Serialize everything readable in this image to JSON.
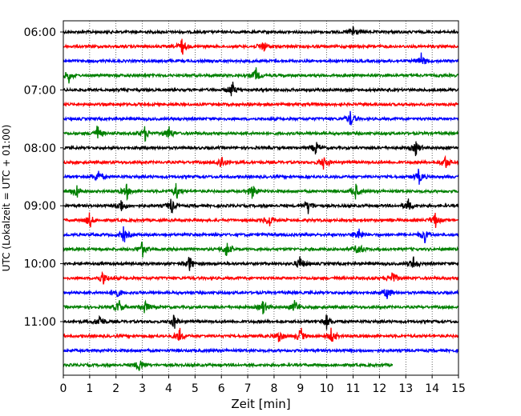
{
  "chart_data": {
    "type": "line",
    "title": "",
    "xlabel": "Zeit  [min]",
    "ylabel": "UTC (Lokalzeit = UTC + 01:00)",
    "xlim": [
      0,
      15
    ],
    "x_ticks": [
      "0",
      "1",
      "2",
      "3",
      "4",
      "5",
      "6",
      "7",
      "8",
      "9",
      "10",
      "11",
      "12",
      "13",
      "14",
      "15"
    ],
    "y_ticks": [
      "06:00",
      "07:00",
      "08:00",
      "09:00",
      "10:00",
      "11:00"
    ],
    "grid": "vertical dotted",
    "series_colors": [
      "#000000",
      "#ff0000",
      "#0000ff",
      "#008000"
    ],
    "traces": [
      {
        "start_utc": "06:00",
        "end_min": 15,
        "color": "#000000",
        "events_min": [
          11.0
        ]
      },
      {
        "start_utc": "06:15",
        "end_min": 15,
        "color": "#ff0000",
        "events_min": [
          4.5,
          7.6
        ]
      },
      {
        "start_utc": "06:30",
        "end_min": 15,
        "color": "#0000ff",
        "events_min": [
          13.6
        ]
      },
      {
        "start_utc": "06:45",
        "end_min": 15,
        "color": "#008000",
        "events_min": [
          0.2,
          7.3
        ]
      },
      {
        "start_utc": "07:00",
        "end_min": 15,
        "color": "#000000",
        "events_min": [
          6.4
        ]
      },
      {
        "start_utc": "07:15",
        "end_min": 15,
        "color": "#ff0000",
        "events_min": []
      },
      {
        "start_utc": "07:30",
        "end_min": 15,
        "color": "#0000ff",
        "events_min": [
          10.9
        ]
      },
      {
        "start_utc": "07:45",
        "end_min": 15,
        "color": "#008000",
        "events_min": [
          1.3,
          3.1,
          4.0
        ]
      },
      {
        "start_utc": "08:00",
        "end_min": 15,
        "color": "#000000",
        "events_min": [
          9.6,
          13.4
        ]
      },
      {
        "start_utc": "08:15",
        "end_min": 15,
        "color": "#ff0000",
        "events_min": [
          6.0,
          9.9,
          14.5
        ]
      },
      {
        "start_utc": "08:30",
        "end_min": 15,
        "color": "#0000ff",
        "events_min": [
          1.3,
          13.5
        ]
      },
      {
        "start_utc": "08:45",
        "end_min": 15,
        "color": "#008000",
        "events_min": [
          0.5,
          2.4,
          4.3,
          7.2,
          11.1
        ]
      },
      {
        "start_utc": "09:00",
        "end_min": 15,
        "color": "#000000",
        "events_min": [
          2.2,
          4.1,
          9.3,
          13.1
        ]
      },
      {
        "start_utc": "09:15",
        "end_min": 15,
        "color": "#ff0000",
        "events_min": [
          1.0,
          7.8,
          14.1
        ]
      },
      {
        "start_utc": "09:30",
        "end_min": 15,
        "color": "#0000ff",
        "events_min": [
          2.3,
          11.2,
          13.7
        ]
      },
      {
        "start_utc": "09:45",
        "end_min": 15,
        "color": "#008000",
        "events_min": [
          3.0,
          6.2,
          11.2
        ]
      },
      {
        "start_utc": "10:00",
        "end_min": 15,
        "color": "#000000",
        "events_min": [
          4.8,
          9.0,
          13.3
        ]
      },
      {
        "start_utc": "10:15",
        "end_min": 15,
        "color": "#ff0000",
        "events_min": [
          1.5,
          12.5
        ]
      },
      {
        "start_utc": "10:30",
        "end_min": 15,
        "color": "#0000ff",
        "events_min": [
          2.0,
          12.3
        ]
      },
      {
        "start_utc": "10:45",
        "end_min": 15,
        "color": "#008000",
        "events_min": [
          2.1,
          3.1,
          7.6,
          8.8
        ]
      },
      {
        "start_utc": "11:00",
        "end_min": 15,
        "color": "#000000",
        "events_min": [
          1.4,
          4.2,
          10.0
        ]
      },
      {
        "start_utc": "11:15",
        "end_min": 15,
        "color": "#ff0000",
        "events_min": [
          4.4,
          8.2,
          9.0,
          10.2
        ]
      },
      {
        "start_utc": "11:30",
        "end_min": 15,
        "color": "#0000ff",
        "events_min": []
      },
      {
        "start_utc": "11:45",
        "end_min": 12.5,
        "color": "#008000",
        "events_min": [
          2.9
        ]
      }
    ]
  }
}
